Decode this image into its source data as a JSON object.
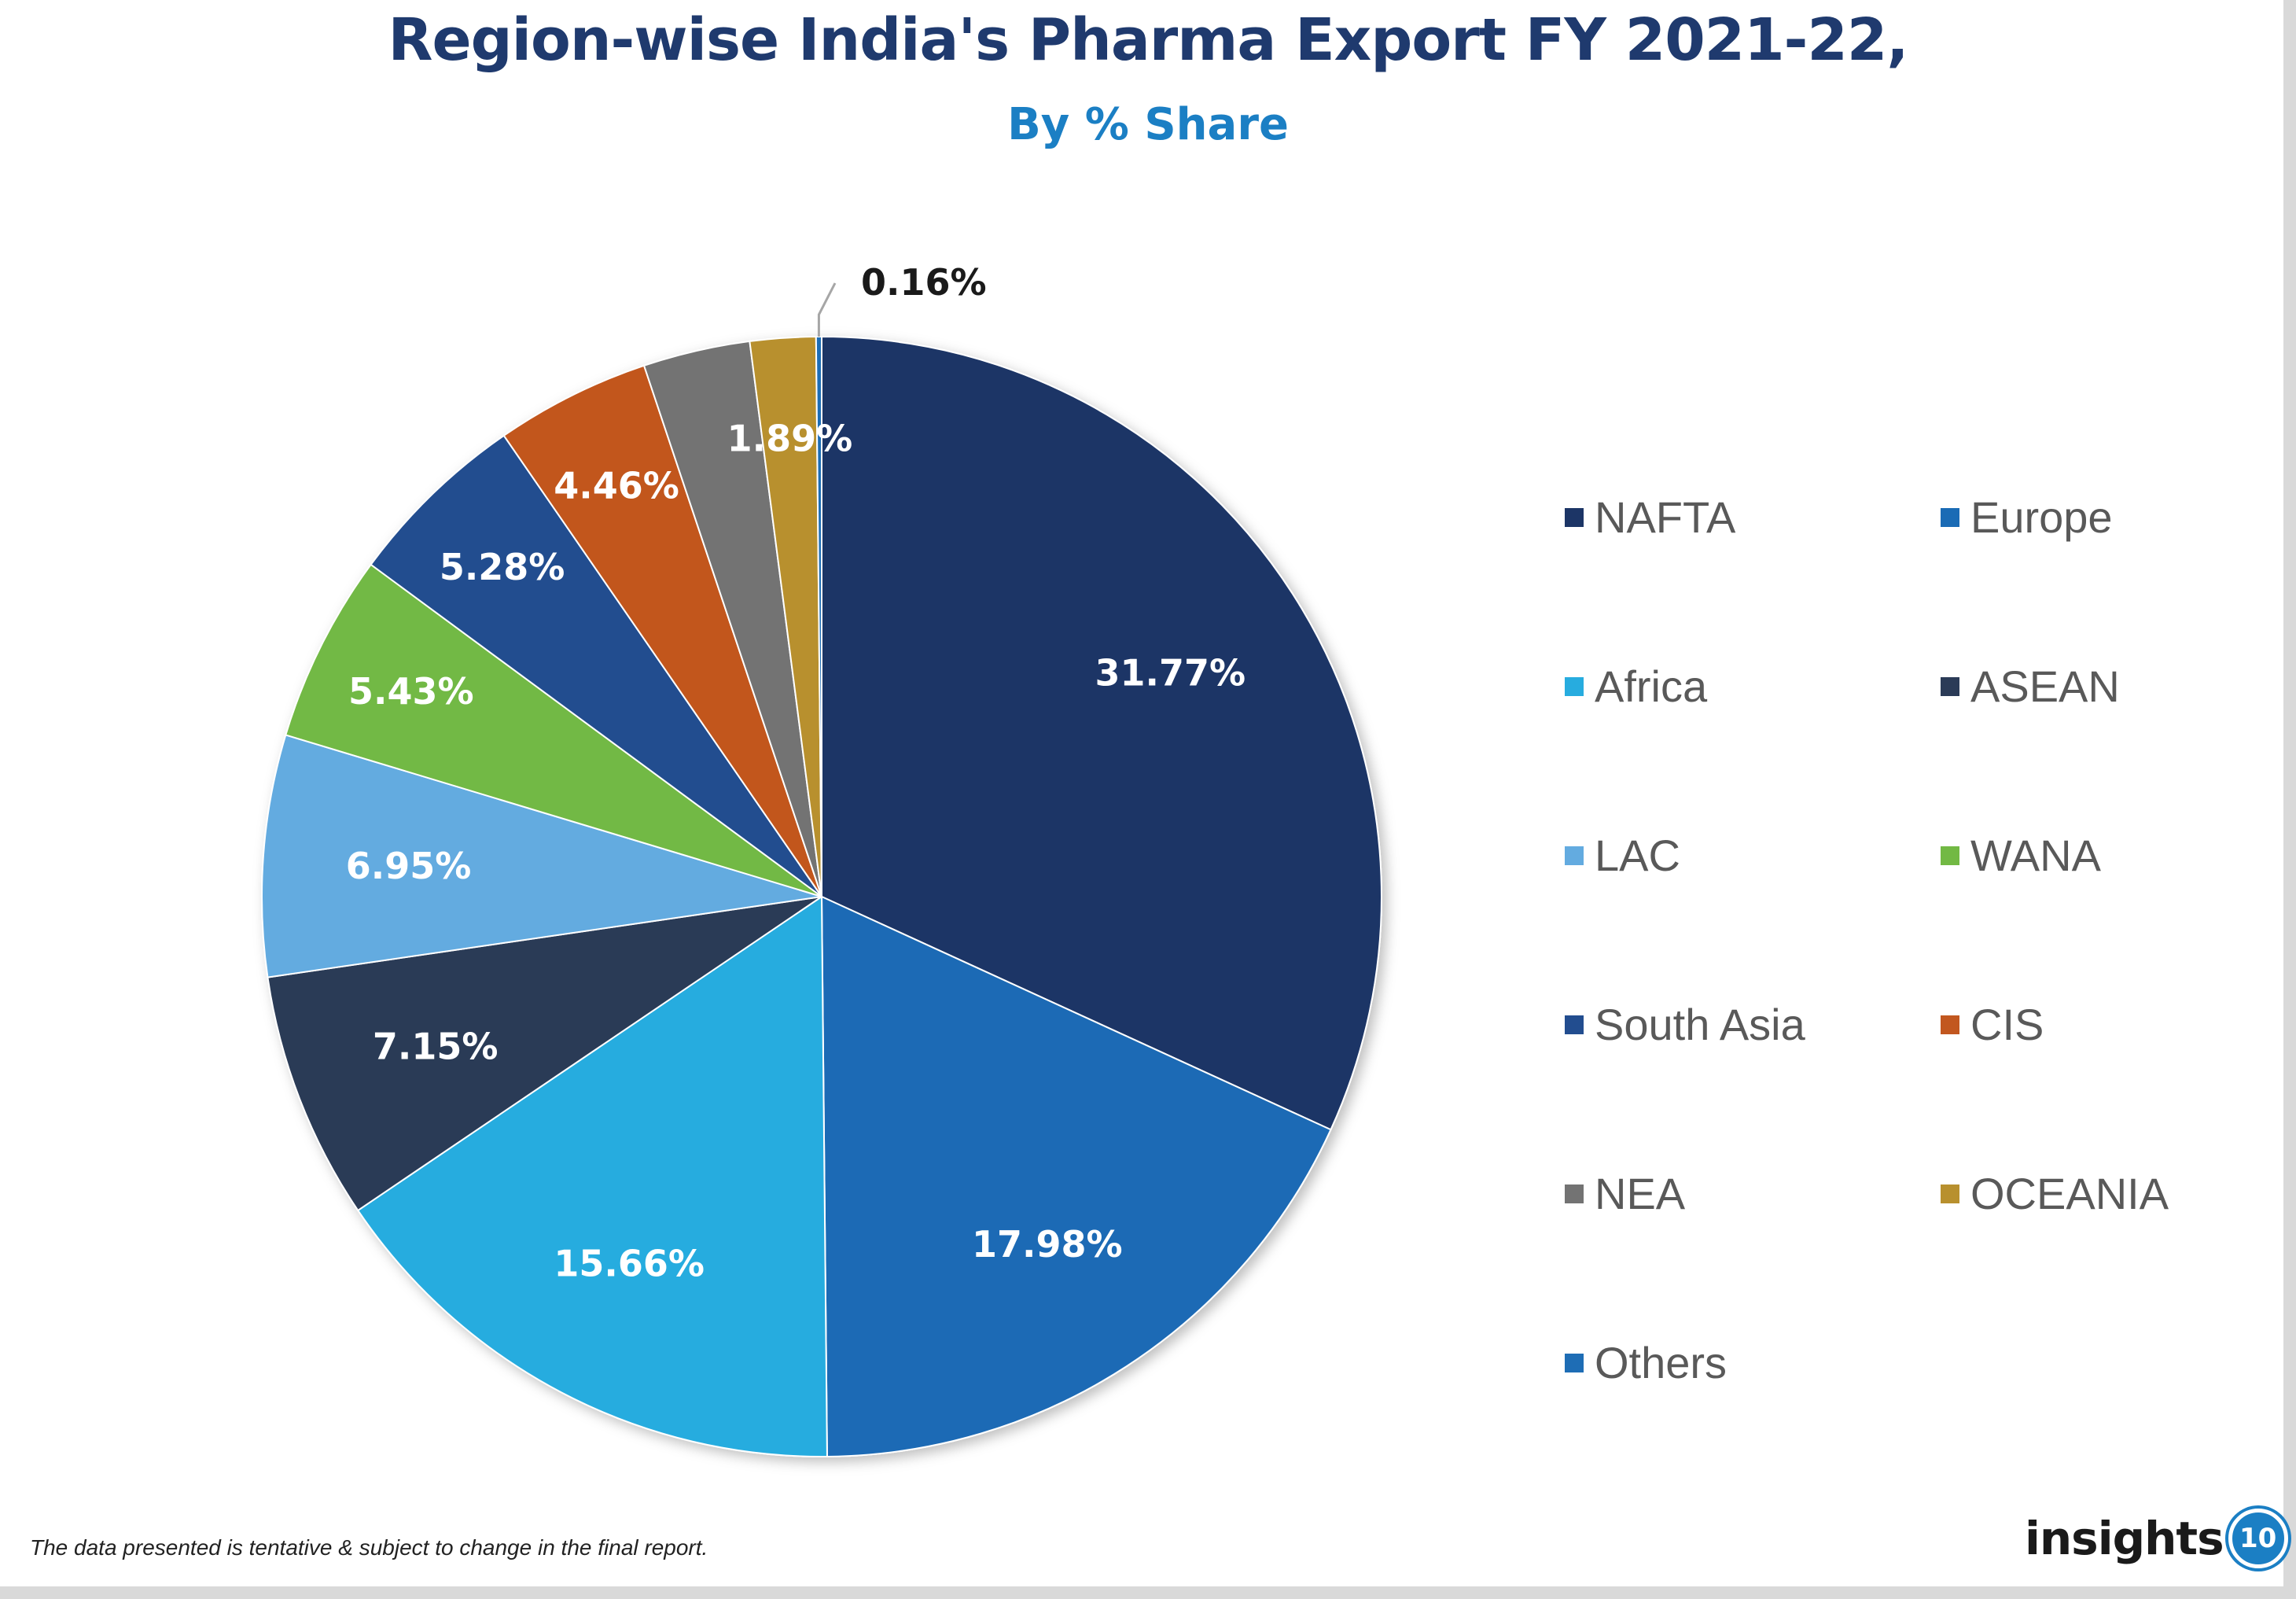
{
  "chart_data": {
    "type": "pie",
    "title": "Region-wise India's Pharma Export FY 2021-22,",
    "subtitle": "By % Share",
    "unit": "%",
    "legend_position": "right",
    "slices": [
      {
        "label": "NAFTA",
        "value": 31.77,
        "display": "31.77%",
        "color": "#1c3566"
      },
      {
        "label": "Europe",
        "value": 17.98,
        "display": "17.98%",
        "color": "#1a6bb5"
      },
      {
        "label": "Africa",
        "value": 15.66,
        "display": "15.66%",
        "color": "#27acdf"
      },
      {
        "label": "ASEAN",
        "value": 7.15,
        "display": "7.15%",
        "color": "#2b3b57"
      },
      {
        "label": "LAC",
        "value": 6.95,
        "display": "6.95%",
        "color": "#63abe0"
      },
      {
        "label": "WANA",
        "value": 5.43,
        "display": "5.43%",
        "color": "#72b944"
      },
      {
        "label": "South Asia",
        "value": 5.28,
        "display": "5.28%",
        "color": "#224d8f"
      },
      {
        "label": "CIS",
        "value": 4.46,
        "display": "4.46%",
        "color": "#c2571f"
      },
      {
        "label": "NEA",
        "value": 3.08,
        "display": "",
        "color": "#737373"
      },
      {
        "label": "OCEANIA",
        "value": 1.89,
        "display": "1.89%",
        "color": "#b8902e"
      },
      {
        "label": "Others",
        "value": 0.16,
        "display": "0.16%",
        "color": "#1e6db5"
      }
    ]
  },
  "footnote": "The data presented is tentative & subject to change in the final report.",
  "logo": {
    "text": "insights",
    "badge": "10"
  }
}
